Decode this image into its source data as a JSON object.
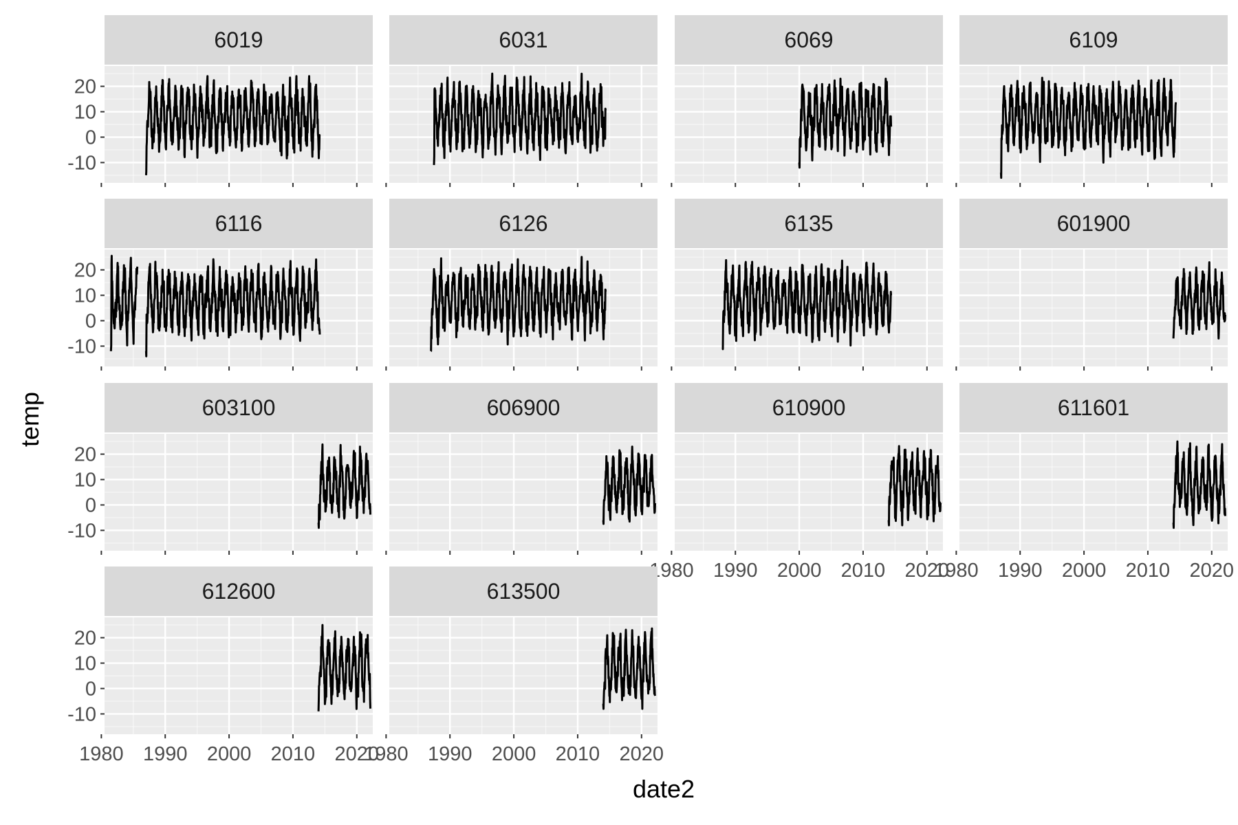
{
  "chart_data": {
    "type": "line",
    "xlabel": "date2",
    "ylabel": "temp",
    "xlim": [
      1980.5,
      2022.5
    ],
    "ylim": [
      -18,
      28
    ],
    "x_ticks": [
      1980,
      1990,
      2000,
      2010,
      2020
    ],
    "y_ticks": [
      -10,
      0,
      10,
      20
    ],
    "layout": "facet_wrap",
    "facets": [
      {
        "label": "6019",
        "segments": [
          [
            1987.0,
            2014.2
          ]
        ],
        "min_temp": -17,
        "max_temp": 24
      },
      {
        "label": "6031",
        "segments": [
          [
            1987.5,
            2014.3
          ]
        ],
        "min_temp": -13,
        "max_temp": 25
      },
      {
        "label": "6069",
        "segments": [
          [
            2000.0,
            2014.3
          ]
        ],
        "min_temp": -12,
        "max_temp": 23
      },
      {
        "label": "6109",
        "segments": [
          [
            1987.0,
            2014.3
          ]
        ],
        "min_temp": -16,
        "max_temp": 25
      },
      {
        "label": "6116",
        "segments": [
          [
            1981.5,
            1985.6
          ],
          [
            1987.0,
            2014.2
          ]
        ],
        "min_temp": -14,
        "max_temp": 26
      },
      {
        "label": "6126",
        "segments": [
          [
            1987.0,
            2014.3
          ]
        ],
        "min_temp": -14,
        "max_temp": 26
      },
      {
        "label": "6135",
        "segments": [
          [
            1988.0,
            2014.3
          ]
        ],
        "min_temp": -13,
        "max_temp": 24
      },
      {
        "label": "601900",
        "segments": [
          [
            2014.0,
            2022.1
          ]
        ],
        "min_temp": -9,
        "max_temp": 23
      },
      {
        "label": "603100",
        "segments": [
          [
            2014.0,
            2022.1
          ]
        ],
        "min_temp": -9,
        "max_temp": 25
      },
      {
        "label": "606900",
        "segments": [
          [
            2014.0,
            2022.1
          ]
        ],
        "min_temp": -8,
        "max_temp": 25
      },
      {
        "label": "610900",
        "segments": [
          [
            2014.0,
            2022.1
          ]
        ],
        "min_temp": -8,
        "max_temp": 26
      },
      {
        "label": "611601",
        "segments": [
          [
            2014.0,
            2022.1
          ]
        ],
        "min_temp": -9,
        "max_temp": 25
      },
      {
        "label": "612600",
        "segments": [
          [
            2014.0,
            2022.1
          ]
        ],
        "min_temp": -11,
        "max_temp": 26
      },
      {
        "label": "613500",
        "segments": [
          [
            2014.0,
            2022.1
          ]
        ],
        "min_temp": -8,
        "max_temp": 25
      }
    ],
    "x_axis_shown_on": [
      "610900",
      "611601",
      "612600",
      "613500"
    ],
    "y_axis_shown_on": [
      "6019",
      "6116",
      "603100",
      "612600"
    ],
    "colors": {
      "panel": "#EBEBEB",
      "grid_major": "#FFFFFF",
      "strip": "#D9D9D9",
      "line": "#000000",
      "tick_text": "#4D4D4D"
    }
  }
}
